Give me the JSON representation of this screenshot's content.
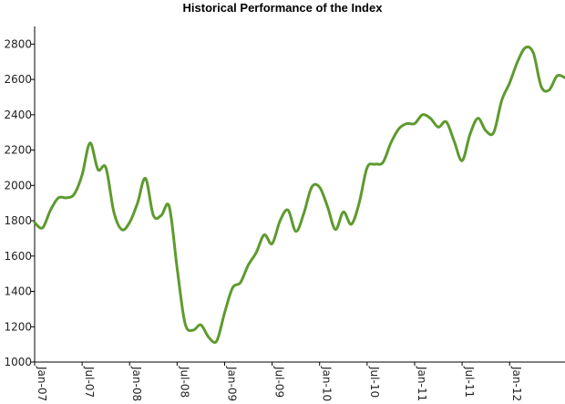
{
  "chart_data": {
    "type": "line",
    "title": "Historical Performance of the Index",
    "xlabel": "",
    "ylabel": "",
    "ylim": [
      1000,
      2900
    ],
    "xlim": [
      "2007-01",
      "2012-08"
    ],
    "yticks": [
      1000,
      1200,
      1400,
      1600,
      1800,
      2000,
      2200,
      2400,
      2600,
      2800
    ],
    "xticks": [
      {
        "date": "2007-01",
        "label": "Jan-07"
      },
      {
        "date": "2007-07",
        "label": "Jul-07"
      },
      {
        "date": "2008-01",
        "label": "Jan-08"
      },
      {
        "date": "2008-07",
        "label": "Jul-08"
      },
      {
        "date": "2009-01",
        "label": "Jan-09"
      },
      {
        "date": "2009-07",
        "label": "Jul-09"
      },
      {
        "date": "2010-01",
        "label": "Jan-10"
      },
      {
        "date": "2010-07",
        "label": "Jul-10"
      },
      {
        "date": "2011-01",
        "label": "Jan-11"
      },
      {
        "date": "2011-07",
        "label": "Jul-11"
      },
      {
        "date": "2012-01",
        "label": "Jan-12"
      }
    ],
    "grid": false,
    "legend": "none",
    "series": [
      {
        "color": "#5e9a2e",
        "x": [
          "2007-01",
          "2007-02",
          "2007-03",
          "2007-04",
          "2007-05",
          "2007-06",
          "2007-07",
          "2007-08",
          "2007-09",
          "2007-10",
          "2007-11",
          "2007-12",
          "2008-01",
          "2008-02",
          "2008-03",
          "2008-04",
          "2008-05",
          "2008-06",
          "2008-07",
          "2008-08",
          "2008-09",
          "2008-10",
          "2008-11",
          "2008-12",
          "2009-01",
          "2009-02",
          "2009-03",
          "2009-04",
          "2009-05",
          "2009-06",
          "2009-07",
          "2009-08",
          "2009-09",
          "2009-10",
          "2009-11",
          "2009-12",
          "2010-01",
          "2010-02",
          "2010-03",
          "2010-04",
          "2010-05",
          "2010-06",
          "2010-07",
          "2010-08",
          "2010-09",
          "2010-10",
          "2010-11",
          "2010-12",
          "2011-01",
          "2011-02",
          "2011-03",
          "2011-04",
          "2011-05",
          "2011-06",
          "2011-07",
          "2011-08",
          "2011-09",
          "2011-10",
          "2011-11",
          "2011-12",
          "2012-01",
          "2012-02",
          "2012-03",
          "2012-04",
          "2012-05",
          "2012-06",
          "2012-07",
          "2012-08"
        ],
        "values": [
          1790,
          1760,
          1860,
          1930,
          1930,
          1950,
          2060,
          2240,
          2090,
          2100,
          1850,
          1750,
          1790,
          1900,
          2040,
          1830,
          1830,
          1880,
          1530,
          1220,
          1180,
          1210,
          1140,
          1120,
          1280,
          1420,
          1450,
          1550,
          1620,
          1720,
          1670,
          1800,
          1860,
          1740,
          1840,
          1990,
          1990,
          1880,
          1750,
          1850,
          1780,
          1900,
          2100,
          2120,
          2130,
          2240,
          2320,
          2350,
          2350,
          2400,
          2380,
          2330,
          2360,
          2250,
          2140,
          2290,
          2380,
          2310,
          2300,
          2480,
          2580,
          2700,
          2780,
          2750,
          2560,
          2540,
          2620,
          2610
        ]
      }
    ]
  }
}
